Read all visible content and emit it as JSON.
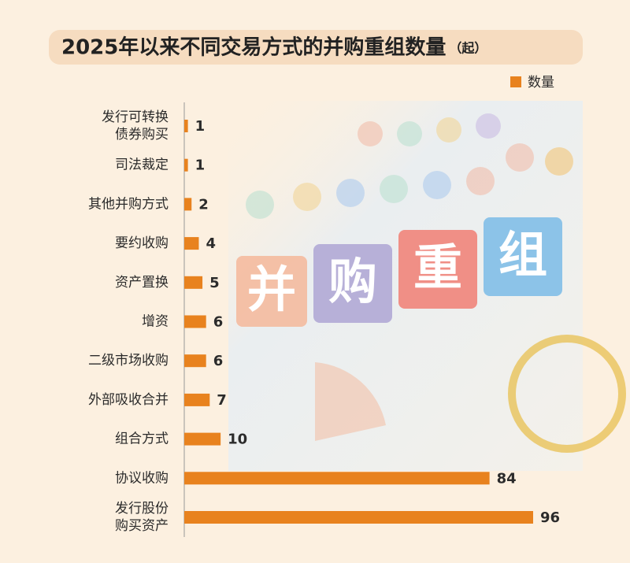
{
  "chart_data": {
    "type": "bar",
    "orientation": "horizontal",
    "title": "2025年以来不同交易方式的并购重组数量",
    "unit": "（起）",
    "series": [
      {
        "name": "数量",
        "color": "#e8821e",
        "values": [
          1,
          1,
          2,
          4,
          5,
          6,
          6,
          7,
          10,
          84,
          96
        ]
      }
    ],
    "categories": [
      "发行可转换\n债券购买",
      "司法裁定",
      "其他并购方式",
      "要约收购",
      "资产置换",
      "增资",
      "二级市场收购",
      "外部吸收合并",
      "组合方式",
      "协议收购",
      "发行股份\n购买资产"
    ],
    "annotations": [
      "并",
      "购",
      "重",
      "组"
    ],
    "legend": "top-right"
  }
}
